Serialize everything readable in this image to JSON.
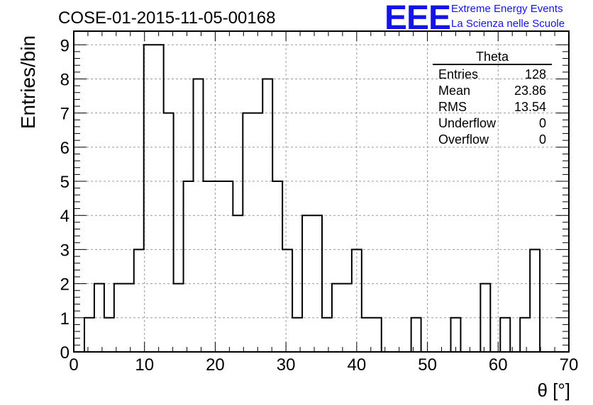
{
  "header": {
    "title": "COSE-01-2015-11-05-00168",
    "logo_text": "EEE",
    "logo_line1": "Extreme Energy Events",
    "logo_line2": "La Scienza nelle Scuole"
  },
  "stats_box": {
    "title": "Theta",
    "rows": [
      {
        "label": "Entries",
        "value": "128"
      },
      {
        "label": "Mean",
        "value": "23.86"
      },
      {
        "label": "RMS",
        "value": "13.54"
      },
      {
        "label": "Underflow",
        "value": "0"
      },
      {
        "label": "Overflow",
        "value": "0"
      }
    ]
  },
  "colors": {
    "logo": "#1414e6",
    "line": "#000000",
    "grid": "#999999"
  },
  "chart_data": {
    "type": "bar",
    "title": "COSE-01-2015-11-05-00168",
    "xlabel": "θ [°]",
    "ylabel": "Entries/bin",
    "xlim": [
      0,
      70
    ],
    "ylim": [
      0,
      9.4
    ],
    "grid": true,
    "x_ticks": [
      0,
      10,
      20,
      30,
      40,
      50,
      60,
      70
    ],
    "y_ticks": [
      0,
      1,
      2,
      3,
      4,
      5,
      6,
      7,
      8,
      9
    ],
    "bin_edges": [
      1.5,
      2.9,
      4.3,
      5.7,
      7.1,
      8.5,
      9.9,
      11.3,
      12.7,
      14.1,
      15.5,
      16.9,
      18.3,
      19.7,
      21.1,
      22.5,
      23.9,
      25.3,
      26.7,
      28.1,
      29.5,
      30.9,
      32.3,
      33.7,
      35.1,
      36.5,
      37.9,
      39.3,
      40.7,
      42.1,
      43.5,
      44.9,
      46.3,
      47.7,
      49.1,
      50.5,
      51.9,
      53.3,
      54.7,
      56.1,
      57.5,
      58.9,
      60.3,
      61.7,
      63.1,
      64.5,
      65.9
    ],
    "values": [
      1,
      2,
      1,
      2,
      2,
      3,
      9,
      9,
      7,
      2,
      5,
      8,
      5,
      5,
      5,
      4,
      7,
      7,
      8,
      5,
      3,
      1,
      4,
      4,
      1,
      2,
      2,
      3,
      1,
      1,
      0,
      0,
      0,
      1,
      0,
      0,
      0,
      1,
      0,
      0,
      2,
      0,
      1,
      0,
      1,
      3
    ]
  }
}
